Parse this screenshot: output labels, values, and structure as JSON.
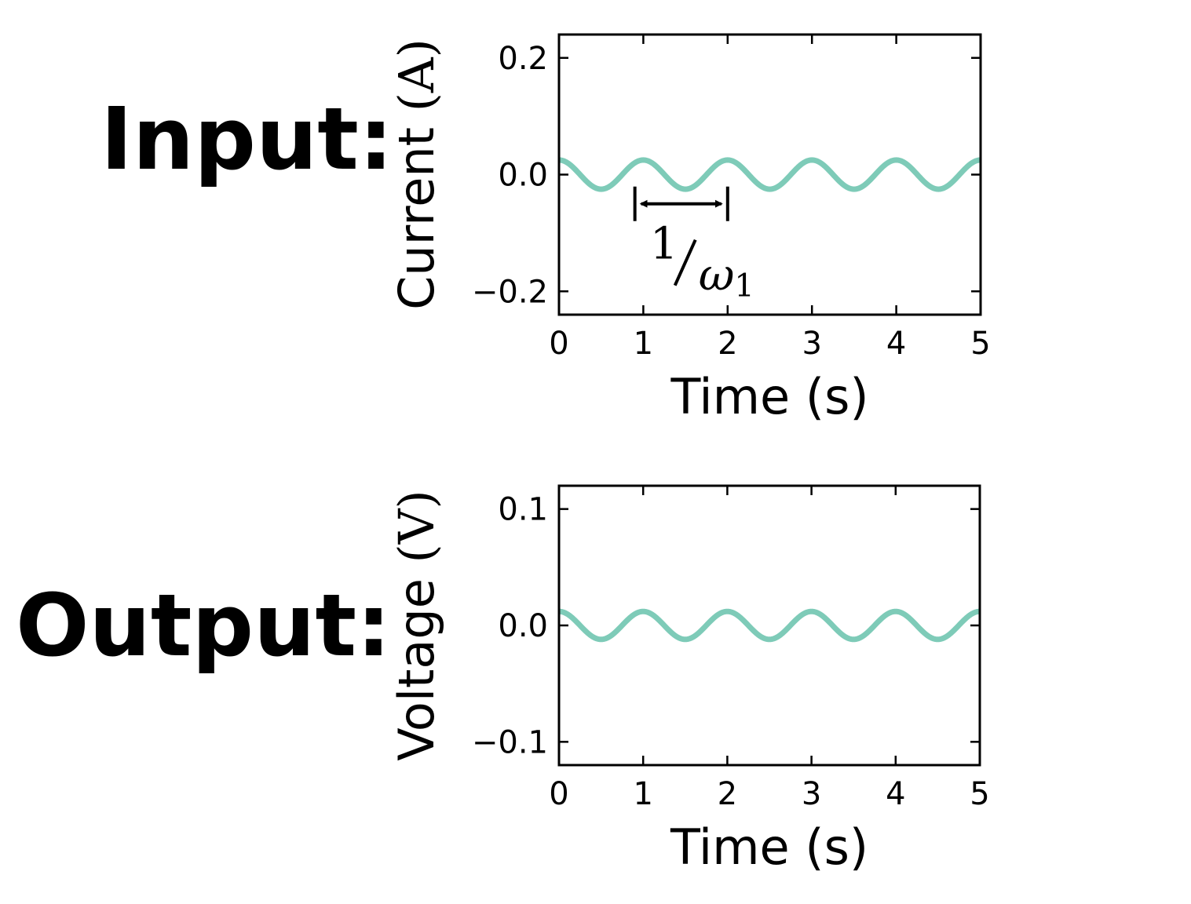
{
  "labels": {
    "input": "Input:",
    "output": "Output:"
  },
  "chart_data": [
    {
      "type": "line",
      "title": "",
      "xlabel": "Time (s)",
      "ylabel_quantity": "Current",
      "ylabel_unit": "(A)",
      "xlim": [
        0,
        5
      ],
      "ylim": [
        -0.24,
        0.24
      ],
      "x_ticks": [
        0,
        1,
        2,
        3,
        4,
        5
      ],
      "x_tick_labels": [
        "0",
        "1",
        "2",
        "3",
        "4",
        "5"
      ],
      "y_ticks": [
        0.2,
        0.0,
        -0.2
      ],
      "y_tick_labels": [
        "0.2",
        "0.0",
        "−0.2"
      ],
      "series": [
        {
          "function": "sin",
          "amplitude": 0.025,
          "frequency_hz": 1,
          "phase_offset_s": -0.25,
          "x_range": [
            0,
            5
          ],
          "color": "#7ecbb8"
        }
      ],
      "annotation": {
        "from_x": 0.9,
        "to_x": 2.0,
        "y": -0.05,
        "numerator": "1",
        "denominator_symbol": "ω",
        "denominator_subscript": "1"
      },
      "grid": false,
      "legend": "none"
    },
    {
      "type": "line",
      "title": "",
      "xlabel": "Time (s)",
      "ylabel_quantity": "Voltage",
      "ylabel_unit": "(V)",
      "xlim": [
        0,
        5
      ],
      "ylim": [
        -0.12,
        0.12
      ],
      "x_ticks": [
        0,
        1,
        2,
        3,
        4,
        5
      ],
      "x_tick_labels": [
        "0",
        "1",
        "2",
        "3",
        "4",
        "5"
      ],
      "y_ticks": [
        0.1,
        0.0,
        -0.1
      ],
      "y_tick_labels": [
        "0.1",
        "0.0",
        "−0.1"
      ],
      "series": [
        {
          "function": "sin",
          "amplitude": 0.012,
          "frequency_hz": 1,
          "phase_offset_s": -0.25,
          "x_range": [
            0,
            5
          ],
          "color": "#7ecbb8"
        }
      ],
      "grid": false,
      "legend": "none"
    }
  ]
}
